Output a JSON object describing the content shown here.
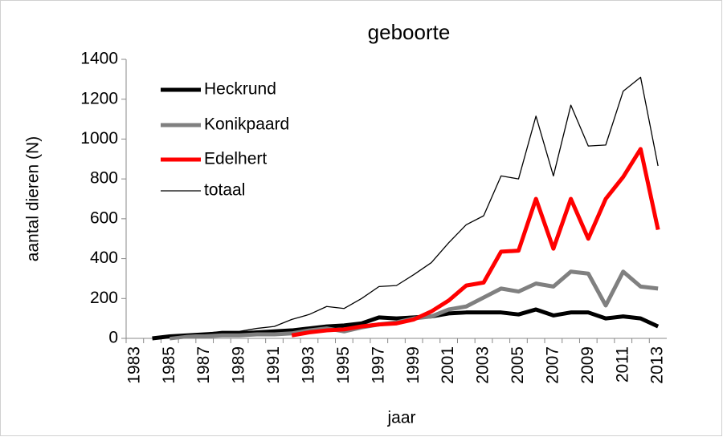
{
  "chart_data": {
    "type": "line",
    "title": "geboorte",
    "x_label": "jaar",
    "y_label": "aantal dieren (N)",
    "categories": [
      "1983",
      null,
      "1985",
      null,
      "1987",
      null,
      "1989",
      null,
      "1991",
      null,
      "1993",
      null,
      "1995",
      null,
      "1997",
      null,
      "1999",
      null,
      "2001",
      null,
      "2003",
      null,
      "2005",
      null,
      "2007",
      null,
      "2009",
      null,
      "2011",
      null,
      "2013"
    ],
    "series": [
      {
        "name": "Heckrund",
        "color": "#000000",
        "width": 5,
        "values": [
          null,
          0,
          10,
          15,
          20,
          25,
          25,
          30,
          35,
          40,
          50,
          60,
          65,
          75,
          105,
          100,
          105,
          110,
          125,
          130,
          130,
          130,
          120,
          145,
          115,
          130,
          130,
          100,
          110,
          100,
          60
        ]
      },
      {
        "name": "Konikpaard",
        "color": "#808080",
        "width": 5,
        "values": [
          null,
          null,
          0,
          10,
          10,
          15,
          15,
          20,
          20,
          25,
          40,
          50,
          35,
          55,
          70,
          80,
          100,
          110,
          145,
          160,
          205,
          250,
          235,
          275,
          260,
          335,
          325,
          165,
          335,
          260,
          250
        ]
      },
      {
        "name": "Edelhert",
        "color": "#ff0000",
        "width": 5,
        "values": [
          null,
          null,
          null,
          null,
          null,
          null,
          null,
          null,
          null,
          15,
          30,
          40,
          45,
          60,
          70,
          75,
          95,
          135,
          190,
          265,
          280,
          435,
          440,
          700,
          450,
          700,
          500,
          700,
          810,
          950,
          545
        ]
      },
      {
        "name": "totaal",
        "color": "#000000",
        "width": 1.3,
        "values": [
          null,
          0,
          10,
          20,
          25,
          35,
          35,
          50,
          60,
          95,
          120,
          160,
          150,
          200,
          260,
          265,
          320,
          380,
          480,
          570,
          615,
          815,
          800,
          1115,
          815,
          1170,
          965,
          970,
          1240,
          1310,
          865
        ]
      }
    ],
    "ylim": [
      0,
      1400
    ],
    "yticks": [
      0,
      200,
      400,
      600,
      800,
      1000,
      1200,
      1400
    ]
  }
}
